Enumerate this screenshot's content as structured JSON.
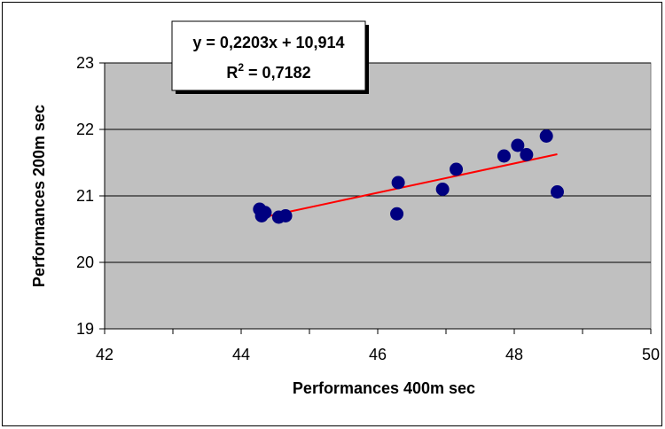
{
  "chart_data": {
    "type": "scatter",
    "title": "",
    "xlabel": "Performances 400m sec",
    "ylabel": "Performances 200m sec",
    "xlim": [
      42,
      50
    ],
    "ylim": [
      19,
      23
    ],
    "x_ticks": [
      42,
      44,
      46,
      48,
      50
    ],
    "y_ticks": [
      19,
      20,
      21,
      22,
      23
    ],
    "x_tick_labels": [
      "42",
      "44",
      "46",
      "48",
      "50"
    ],
    "y_tick_labels": [
      "19",
      "20",
      "21",
      "22",
      "23"
    ],
    "grid": "horizontal major gridlines",
    "plot_background": "#C0C0C0",
    "marker_color": "#000080",
    "trendline_color": "#FF0000",
    "series": [
      {
        "points": [
          {
            "x": 44.27,
            "y": 20.8
          },
          {
            "x": 44.3,
            "y": 20.7
          },
          {
            "x": 44.35,
            "y": 20.75
          },
          {
            "x": 44.55,
            "y": 20.68
          },
          {
            "x": 44.65,
            "y": 20.7
          },
          {
            "x": 46.28,
            "y": 20.73
          },
          {
            "x": 46.3,
            "y": 21.2
          },
          {
            "x": 46.95,
            "y": 21.1
          },
          {
            "x": 47.15,
            "y": 21.4
          },
          {
            "x": 47.85,
            "y": 21.6
          },
          {
            "x": 48.05,
            "y": 21.76
          },
          {
            "x": 48.18,
            "y": 21.62
          },
          {
            "x": 48.47,
            "y": 21.9
          },
          {
            "x": 48.63,
            "y": 21.06
          }
        ]
      }
    ],
    "trendline": {
      "slope": 0.2203,
      "intercept": 10.914,
      "x_range": [
        44.27,
        48.63
      ],
      "equation_text": "y = 0,2203x + 10,914",
      "r2_label": "R",
      "r2_superscript": "2",
      "r2_value_text": " = 0,7182"
    }
  }
}
